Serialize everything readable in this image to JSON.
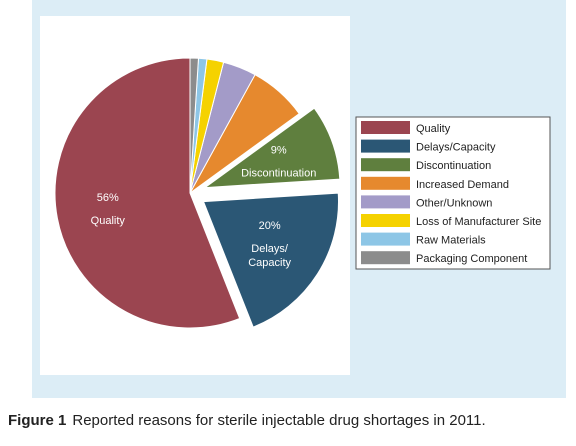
{
  "chart_data": {
    "type": "pie",
    "legend_position": "right",
    "slices": [
      {
        "label": "Quality",
        "value": 56,
        "color": "#9b4550",
        "percent_label": "56%",
        "slice_label": "Quality",
        "exploded": false
      },
      {
        "label": "Delays/Capacity",
        "value": 20,
        "color": "#2b5775",
        "percent_label": "20%",
        "slice_label": "Delays/ Capacity",
        "exploded": true
      },
      {
        "label": "Discontinuation",
        "value": 9,
        "color": "#5f7f3e",
        "percent_label": "9%",
        "slice_label": "Discontinuation",
        "exploded": true
      },
      {
        "label": "Increased Demand",
        "value": 7,
        "color": "#e6892e",
        "percent_label": "",
        "slice_label": "",
        "exploded": false
      },
      {
        "label": "Other/Unknown",
        "value": 4,
        "color": "#a39bc8",
        "percent_label": "",
        "slice_label": "",
        "exploded": false
      },
      {
        "label": "Loss of Manufacturer Site",
        "value": 2,
        "color": "#f5d200",
        "percent_label": "",
        "slice_label": "",
        "exploded": false
      },
      {
        "label": "Raw Materials",
        "value": 1,
        "color": "#8dc6e6",
        "percent_label": "",
        "slice_label": "",
        "exploded": false
      },
      {
        "label": "Packaging Component",
        "value": 1,
        "color": "#8c8c8c",
        "percent_label": "",
        "slice_label": "",
        "exploded": false
      }
    ]
  },
  "caption": {
    "figure_number": "Figure 1",
    "text": "Reported reasons for sterile injectable drug shortages in 2011."
  }
}
